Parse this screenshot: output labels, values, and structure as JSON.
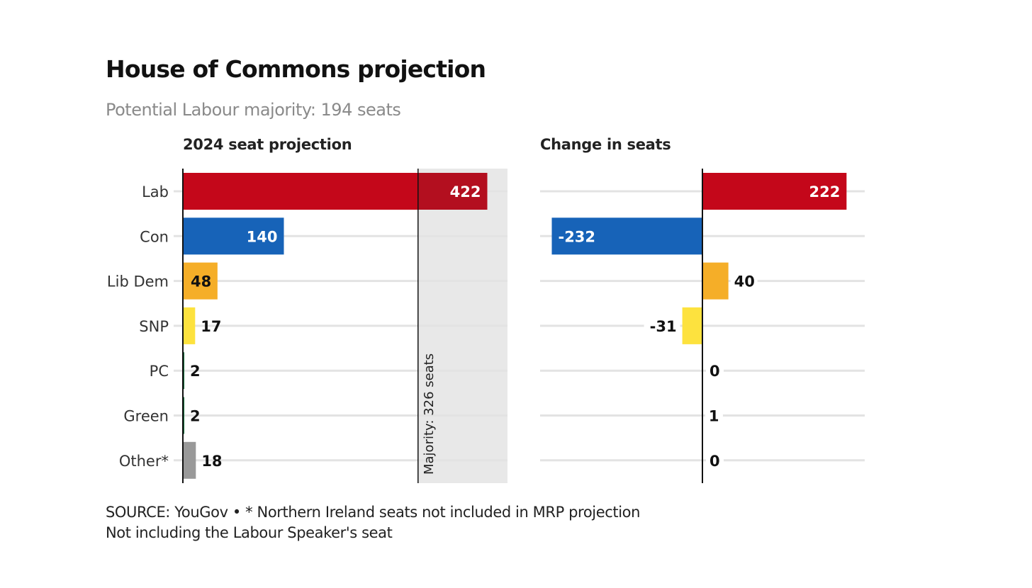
{
  "header": {
    "title": "House of Commons projection",
    "subtitle": "Potential Labour majority: 194 seats"
  },
  "footer": {
    "line1": "SOURCE: YouGov • * Northern Ireland seats not included in MRP projection",
    "line2": "Not including the Labour Speaker's seat"
  },
  "chart_data": [
    {
      "type": "bar",
      "orientation": "horizontal",
      "title": "2024 seat projection",
      "categories": [
        "Lab",
        "Con",
        "Lib Dem",
        "SNP",
        "PC",
        "Green",
        "Other*"
      ],
      "values": [
        422,
        140,
        48,
        17,
        2,
        2,
        18
      ],
      "colors": [
        "#c4071a",
        "#1763b8",
        "#f5ae28",
        "#fde23e",
        "#136f3a",
        "#136f3a",
        "#999999"
      ],
      "highlight_color": "#b30f1f",
      "xlim": [
        0,
        450
      ],
      "reference_line": {
        "value": 326,
        "label": "Majority: 326 seats",
        "shaded_beyond": true,
        "shade_color": "#e8e8e8"
      },
      "grid": true,
      "data_labels": true
    },
    {
      "type": "bar",
      "orientation": "horizontal",
      "title": "Change in seats",
      "categories": [
        "Lab",
        "Con",
        "Lib Dem",
        "SNP",
        "PC",
        "Green",
        "Other*"
      ],
      "values": [
        222,
        -232,
        40,
        -31,
        0,
        1,
        0
      ],
      "colors": [
        "#c4071a",
        "#1763b8",
        "#f5ae28",
        "#fde23e",
        "#136f3a",
        "#136f3a",
        "#999999"
      ],
      "xlim": [
        -250,
        250
      ],
      "grid": true,
      "data_labels": true
    }
  ]
}
